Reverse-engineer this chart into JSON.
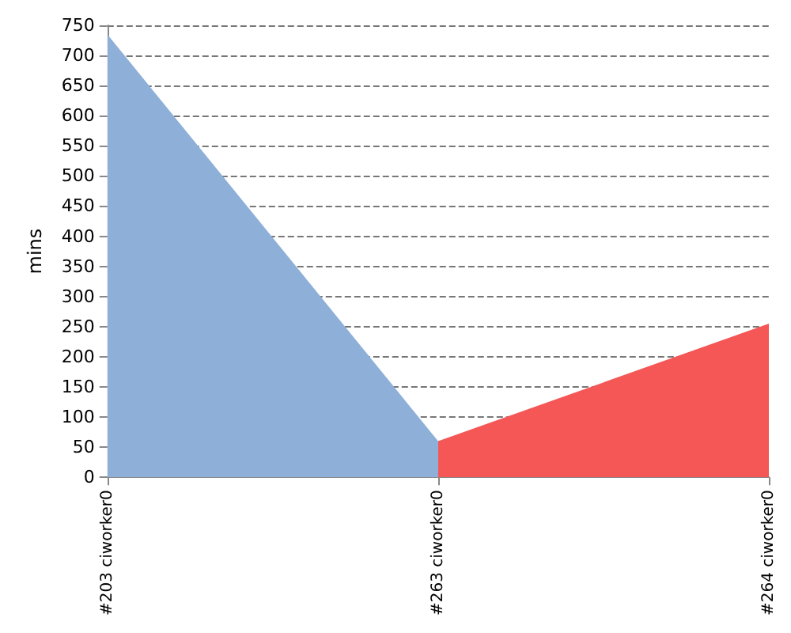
{
  "chart_data": {
    "type": "area",
    "ylabel": "mins",
    "categories": [
      "#203 ciworker0",
      "#263 ciworker0",
      "#264 ciworker0"
    ],
    "values": [
      735,
      60,
      255
    ],
    "colors": [
      "#8eb0d8",
      "#f55656",
      "#f55656"
    ],
    "ylim": [
      0,
      750
    ],
    "yticks": [
      0,
      50,
      100,
      150,
      200,
      250,
      300,
      350,
      400,
      450,
      500,
      550,
      600,
      650,
      700,
      750
    ],
    "grid": "y"
  }
}
